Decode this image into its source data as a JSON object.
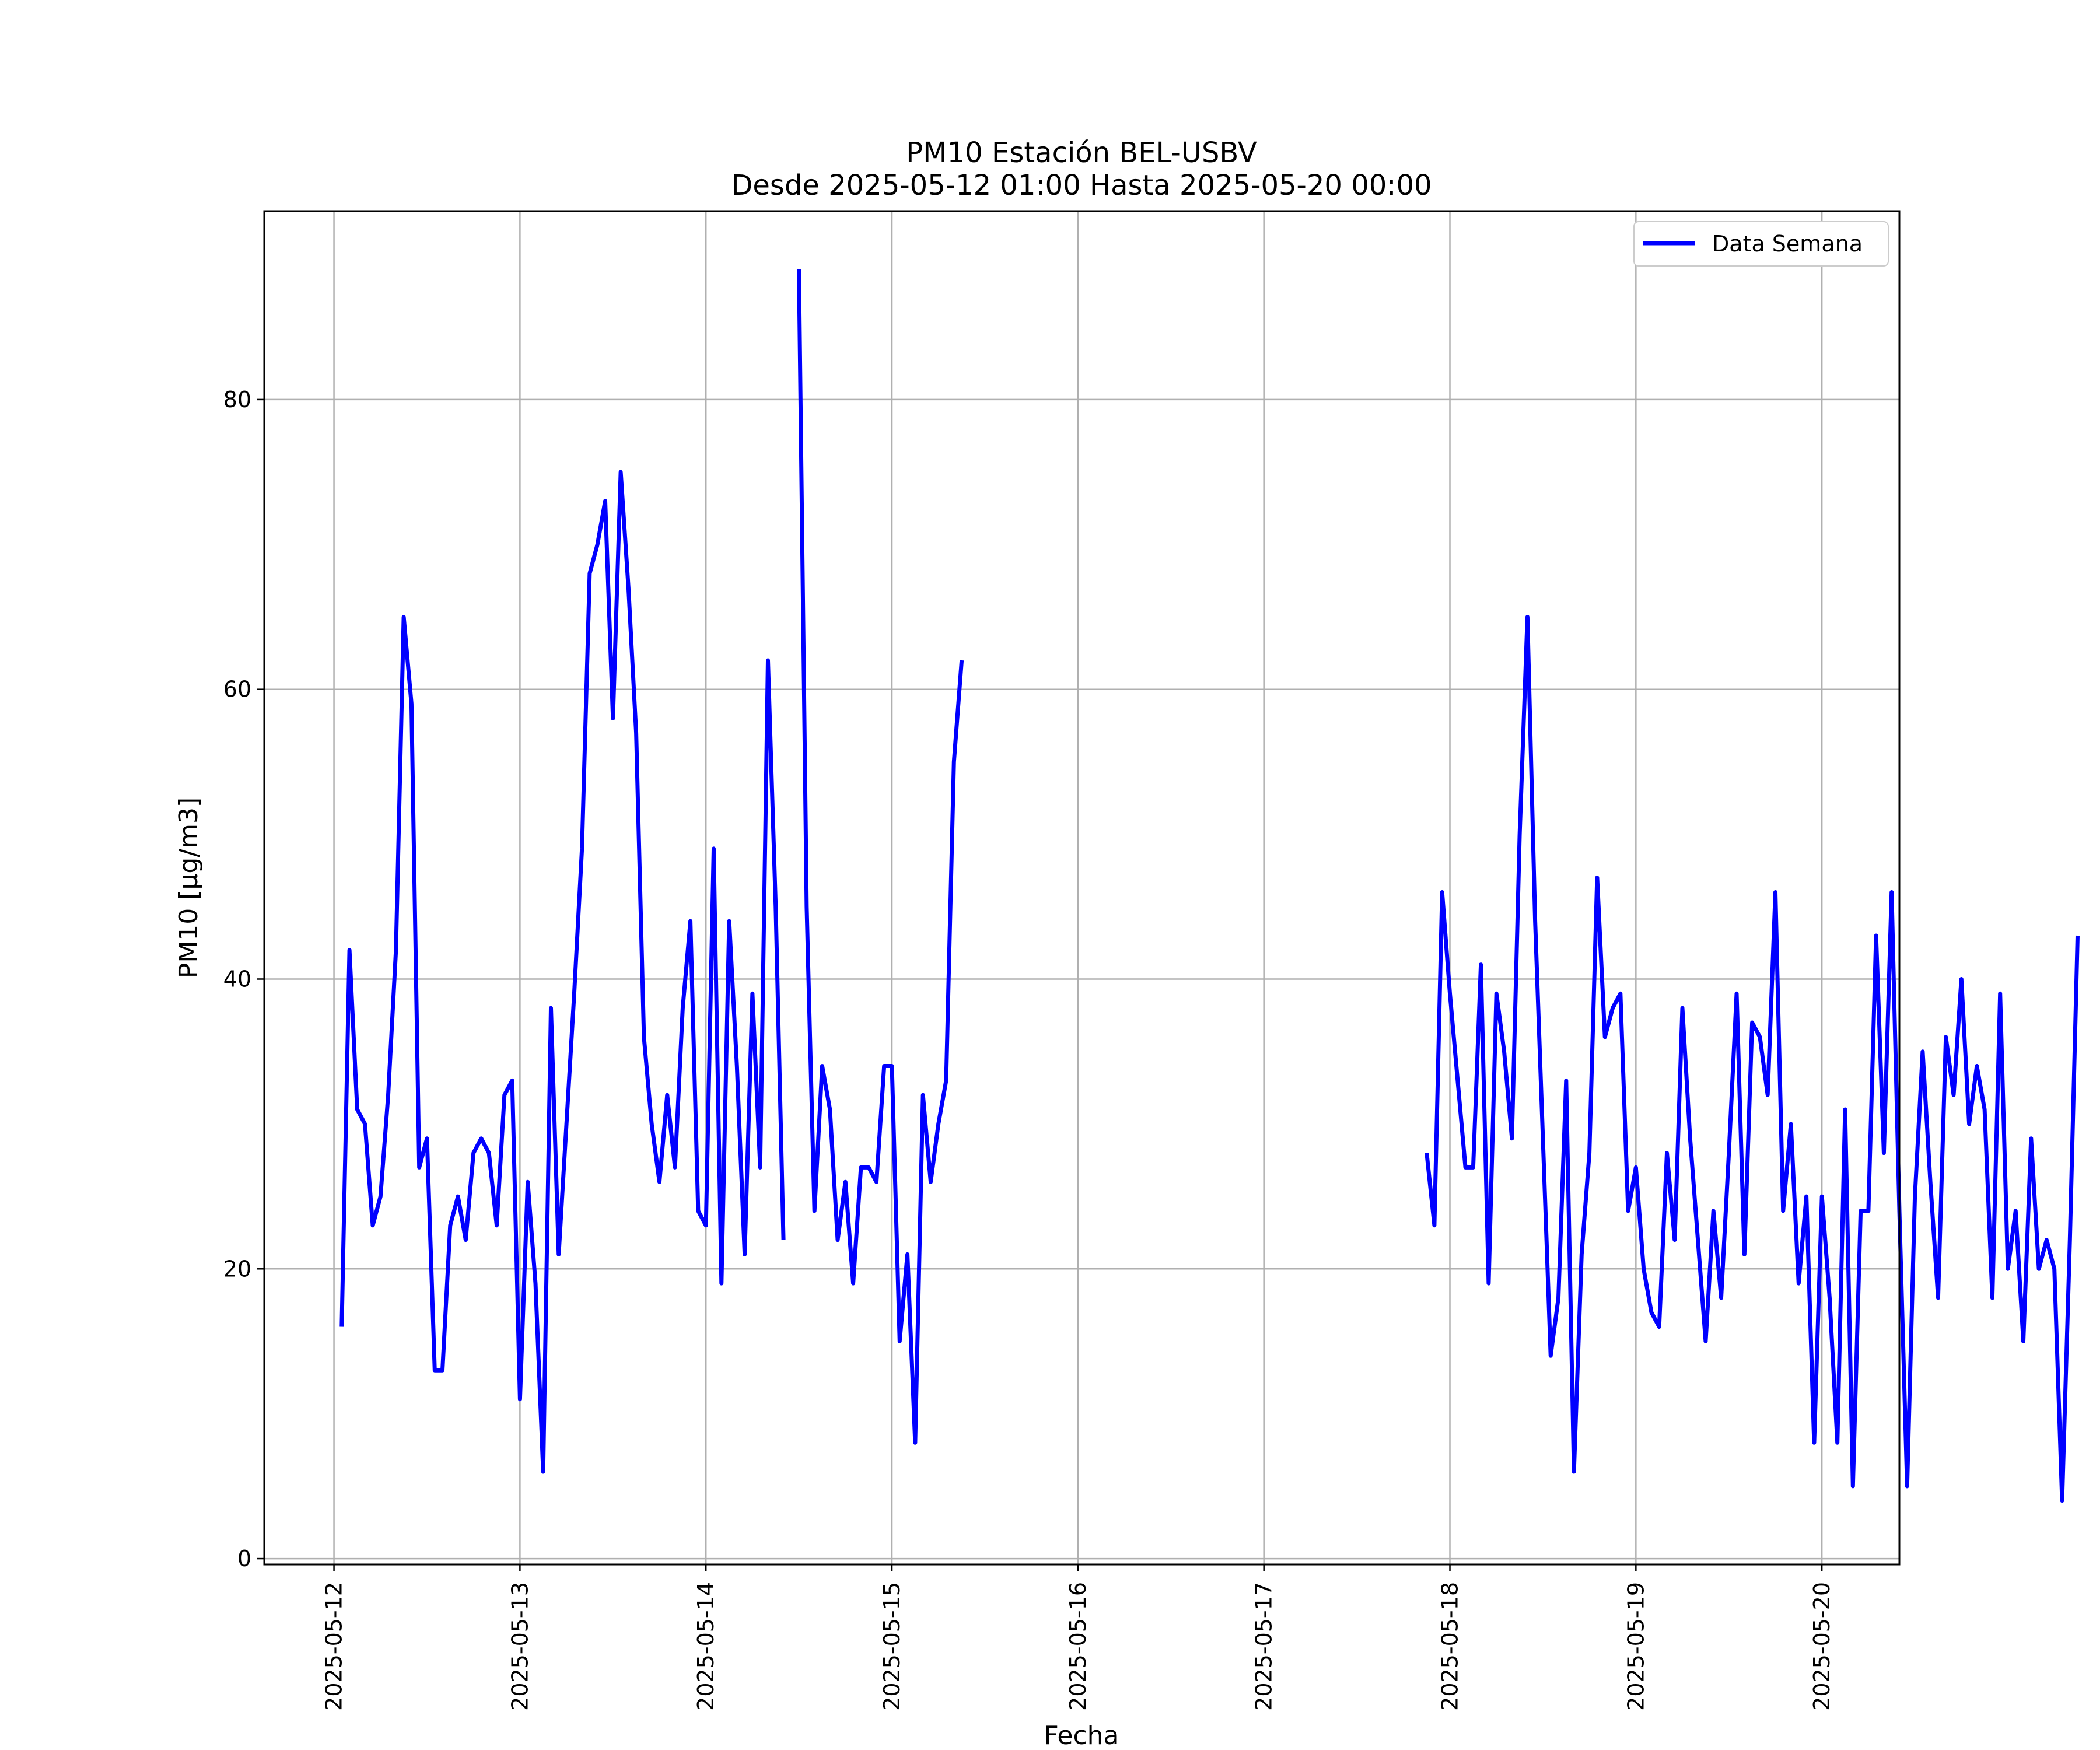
{
  "chart_data": {
    "type": "line",
    "title": "PM10 Estación BEL-USBV",
    "subtitle": "Desde 2025-05-12 01:00 Hasta 2025-05-20 00:00",
    "xlabel": "Fecha",
    "ylabel": "PM10 [μg/m3]",
    "xlim": [
      "2025-05-11 15:00",
      "2025-05-20 10:00"
    ],
    "ylim": [
      -0.4,
      93.0
    ],
    "grid": true,
    "legend_position": "top-right",
    "x_ticks": [
      "2025-05-12",
      "2025-05-13",
      "2025-05-14",
      "2025-05-15",
      "2025-05-16",
      "2025-05-17",
      "2025-05-18",
      "2025-05-19",
      "2025-05-20"
    ],
    "y_ticks": [
      0,
      20,
      40,
      60,
      80
    ],
    "series": [
      {
        "name": "Data Semana",
        "color": "#0000ff",
        "x_start": "2025-05-12 01:00",
        "x_step_hours": 1,
        "values": [
          16,
          42,
          31,
          30,
          23,
          25,
          32,
          42,
          65,
          59,
          27,
          29,
          13,
          13,
          23,
          25,
          22,
          28,
          29,
          28,
          23,
          32,
          33,
          11,
          26,
          19,
          6,
          38,
          21,
          30,
          39,
          49,
          68,
          70,
          73,
          58,
          75,
          67,
          57,
          36,
          30,
          26,
          32,
          27,
          38,
          44,
          24,
          23,
          49,
          19,
          44,
          34,
          21,
          39,
          27,
          62,
          45,
          22,
          null,
          89,
          45,
          24,
          34,
          31,
          22,
          26,
          19,
          27,
          27,
          26,
          34,
          34,
          15,
          21,
          8,
          32,
          26,
          30,
          33,
          55,
          62,
          null,
          null,
          null,
          null,
          null,
          null,
          null,
          null,
          null,
          null,
          null,
          null,
          null,
          null,
          null,
          null,
          null,
          null,
          null,
          null,
          null,
          null,
          null,
          null,
          null,
          null,
          null,
          null,
          null,
          null,
          null,
          null,
          null,
          null,
          null,
          null,
          null,
          null,
          null,
          null,
          null,
          null,
          null,
          null,
          null,
          null,
          null,
          null,
          null,
          null,
          null,
          null,
          null,
          null,
          null,
          null,
          null,
          null,
          null,
          28,
          23,
          46,
          39,
          33,
          27,
          27,
          41,
          19,
          39,
          35,
          29,
          50,
          65,
          44,
          29,
          14,
          18,
          33,
          6,
          21,
          28,
          47,
          36,
          38,
          39,
          24,
          27,
          20,
          17,
          16,
          28,
          22,
          38,
          29,
          22,
          15,
          24,
          18,
          28,
          39,
          21,
          37,
          36,
          32,
          46,
          24,
          30,
          19,
          25,
          8,
          25,
          18,
          8,
          31,
          5,
          24,
          24,
          43,
          28,
          46,
          24,
          5,
          25,
          35,
          26,
          18,
          36,
          32,
          40,
          30,
          34,
          31,
          18,
          39,
          20,
          24,
          15,
          29,
          20,
          22,
          20,
          4,
          22,
          43
        ]
      }
    ]
  }
}
